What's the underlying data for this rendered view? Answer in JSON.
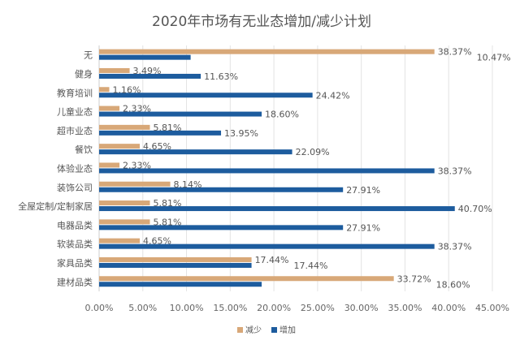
{
  "chart_data": {
    "type": "bar",
    "orientation": "horizontal",
    "title": "2020年市场有无业态增加/减少计划",
    "categories": [
      "无",
      "健身",
      "教育培训",
      "儿童业态",
      "超市业态",
      "餐饮",
      "体验业态",
      "装饰公司",
      "全屋定制/定制家居",
      "电器品类",
      "软装品类",
      "家具品类",
      "建材品类"
    ],
    "series": [
      {
        "name": "减少",
        "color": "#D8A878",
        "values": [
          38.37,
          3.49,
          1.16,
          2.33,
          5.81,
          4.65,
          2.33,
          8.14,
          5.81,
          5.81,
          4.65,
          17.44,
          33.72
        ]
      },
      {
        "name": "增加",
        "color": "#1D5C9E",
        "values": [
          10.47,
          11.63,
          24.42,
          18.6,
          13.95,
          22.09,
          38.37,
          27.91,
          40.7,
          27.91,
          38.37,
          17.44,
          18.6
        ]
      }
    ],
    "xlim": [
      0,
      45
    ],
    "xticks": [
      "0.00%",
      "5.00%",
      "10.00%",
      "15.00%",
      "20.00%",
      "25.00%",
      "30.00%",
      "35.00%",
      "40.00%",
      "45.00%"
    ],
    "grid": true,
    "legend": "bottom"
  }
}
